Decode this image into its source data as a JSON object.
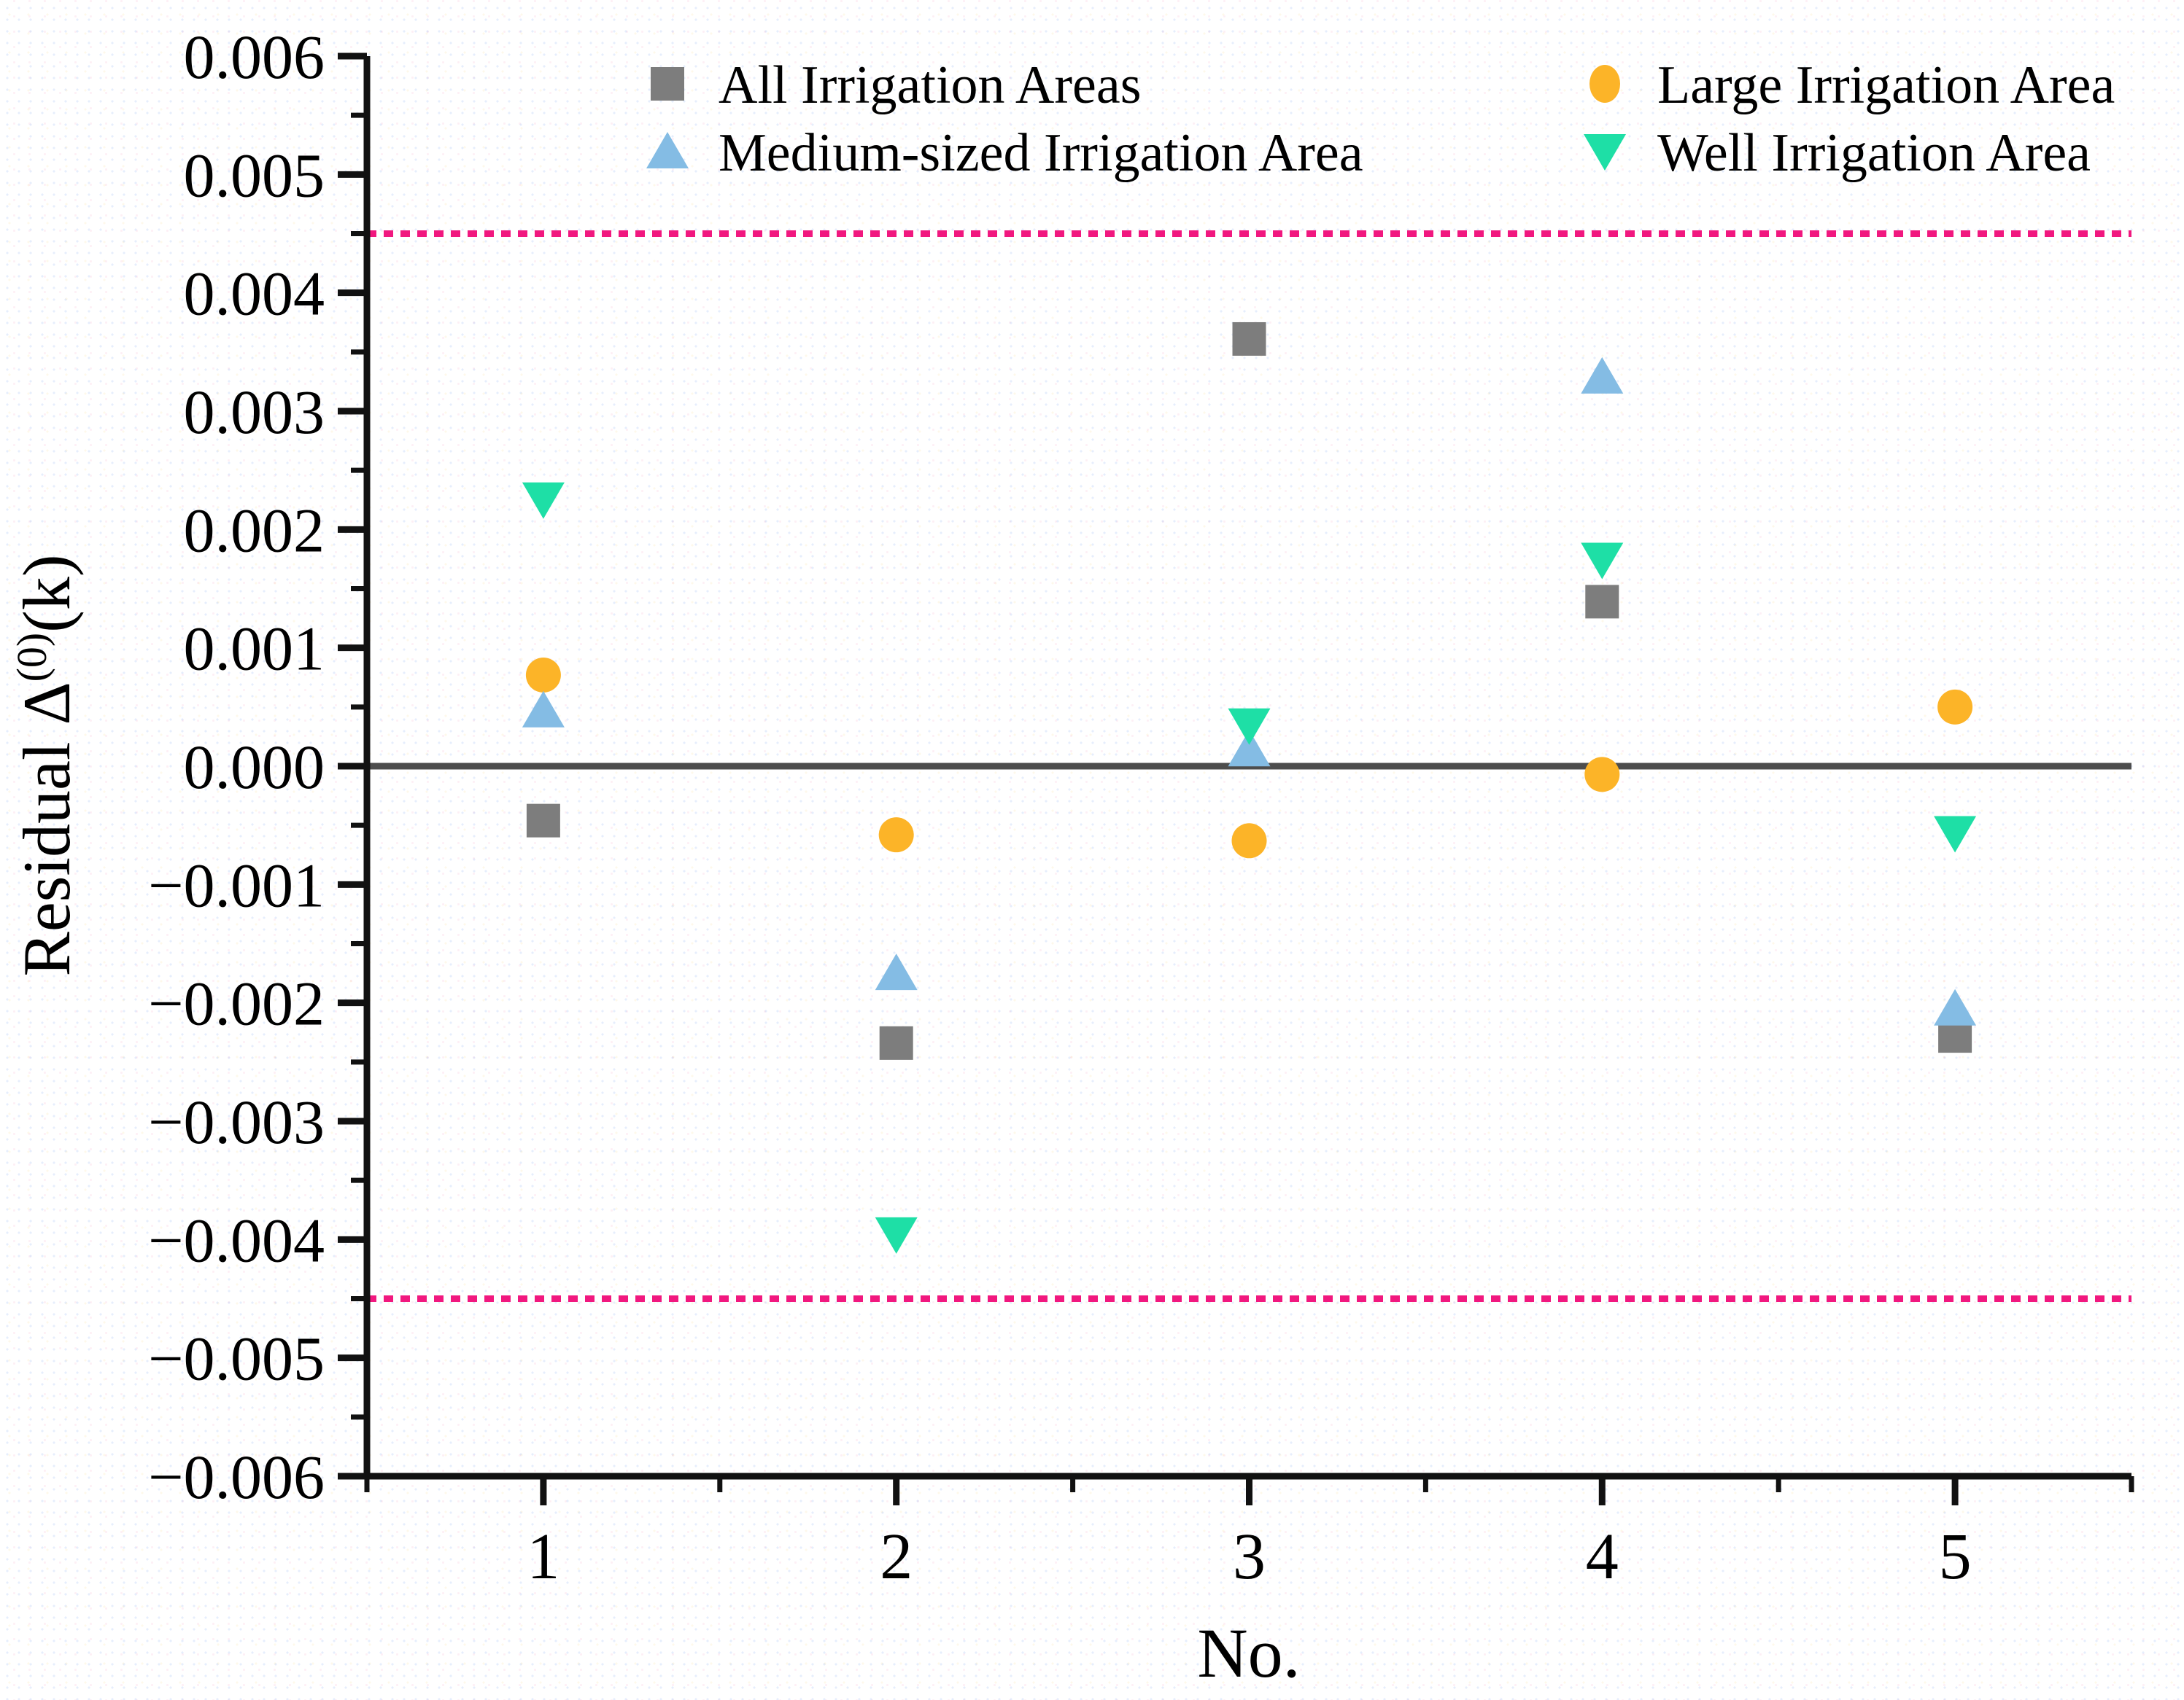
{
  "chart_data": {
    "type": "scatter",
    "title": "",
    "xlabel": "No.",
    "ylabel": "Residual Δ(0)(k)",
    "ylabel_base": "Residual  Δ",
    "ylabel_superscript": "(0)",
    "ylabel_suffix": "(k)",
    "x": [
      1,
      2,
      3,
      4,
      5
    ],
    "xlim": [
      0.5,
      5.5
    ],
    "ylim": [
      -0.006,
      0.006
    ],
    "y_major_step": 0.001,
    "y_minor_step": 0.0005,
    "x_tick_labels": [
      "1",
      "2",
      "3",
      "4",
      "5"
    ],
    "y_tick_labels": [
      "0.006",
      "0.005",
      "0.004",
      "0.003",
      "0.002",
      "0.001",
      "0.000",
      "−0.001",
      "−0.002",
      "−0.003",
      "−0.004",
      "−0.005",
      "−0.006"
    ],
    "grid": false,
    "legend_position": "top-inside-two-columns",
    "legend_order": [
      [
        "All Irrigation Areas",
        "Large Irrigation Area"
      ],
      [
        "Medium-sized Irrigation Area",
        "Well Irrigation Area"
      ]
    ],
    "series": [
      {
        "name": "All Irrigation Areas",
        "marker": "square",
        "color": "#7d7d7d",
        "values": [
          -0.00046,
          -0.00234,
          0.00361,
          0.00139,
          -0.00228
        ]
      },
      {
        "name": "Large Irrigation Area",
        "marker": "circle",
        "color": "#fcb428",
        "values": [
          0.00077,
          -0.00058,
          -0.00063,
          -7e-05,
          0.0005
        ]
      },
      {
        "name": "Medium-sized Irrigation Area",
        "marker": "triangle-up",
        "color": "#84bce4",
        "values": [
          0.00047,
          -0.00175,
          0.00014,
          0.00329,
          -0.00205
        ]
      },
      {
        "name": "Well Irrigation Area",
        "marker": "triangle-down",
        "color": "#1edfa6",
        "values": [
          0.00225,
          -0.00396,
          0.00034,
          0.00174,
          -0.00057
        ]
      }
    ],
    "reference_lines": [
      {
        "name": "upper-limit",
        "value": 0.0045,
        "style": "dotted",
        "color": "#f1187f"
      },
      {
        "name": "zero-line",
        "value": 0.0,
        "style": "solid",
        "color": "#4d4d4d"
      },
      {
        "name": "lower-limit",
        "value": -0.0045,
        "style": "dotted",
        "color": "#f1187f"
      }
    ],
    "axis_color": "#111111"
  }
}
